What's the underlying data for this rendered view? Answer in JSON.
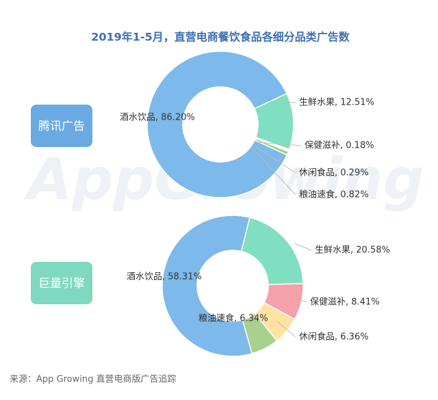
{
  "title": "2019年1-5月，直营电商餐饮食品各细分品类广告数",
  "watermark": "AppGrowing",
  "source": "来源：App Growing 直营电商版广告追踪",
  "chart_data": [
    {
      "type": "donut",
      "title": "腾讯广告",
      "color": "#6aa9e2",
      "values": [
        12.51,
        0.18,
        0.29,
        0.82,
        86.2
      ],
      "value_labels": [
        "生鲜水果, 12.51%",
        "保健滋补, 0.18%",
        "休闲食品, 0.29%",
        "粮油速食, 0.82%",
        "酒水饮品, 86.20%"
      ],
      "colors": [
        "#80dfc1",
        "#f4a1a9",
        "#fde3a0",
        "#a9d18e",
        "#7db9ea"
      ]
    },
    {
      "type": "donut",
      "title": "巨量引擎",
      "color": "#7fd9c0",
      "values": [
        20.58,
        8.41,
        6.36,
        6.34,
        58.31
      ],
      "value_labels": [
        "生鲜水果, 20.58%",
        "保健滋补, 8.41%",
        "休闲食品, 6.36%",
        "粮油速食, 6.34%",
        "酒水饮品, 58.31%"
      ],
      "colors": [
        "#80dfc1",
        "#f4a1a9",
        "#fde3a0",
        "#a9d18e",
        "#7db9ea"
      ]
    }
  ]
}
